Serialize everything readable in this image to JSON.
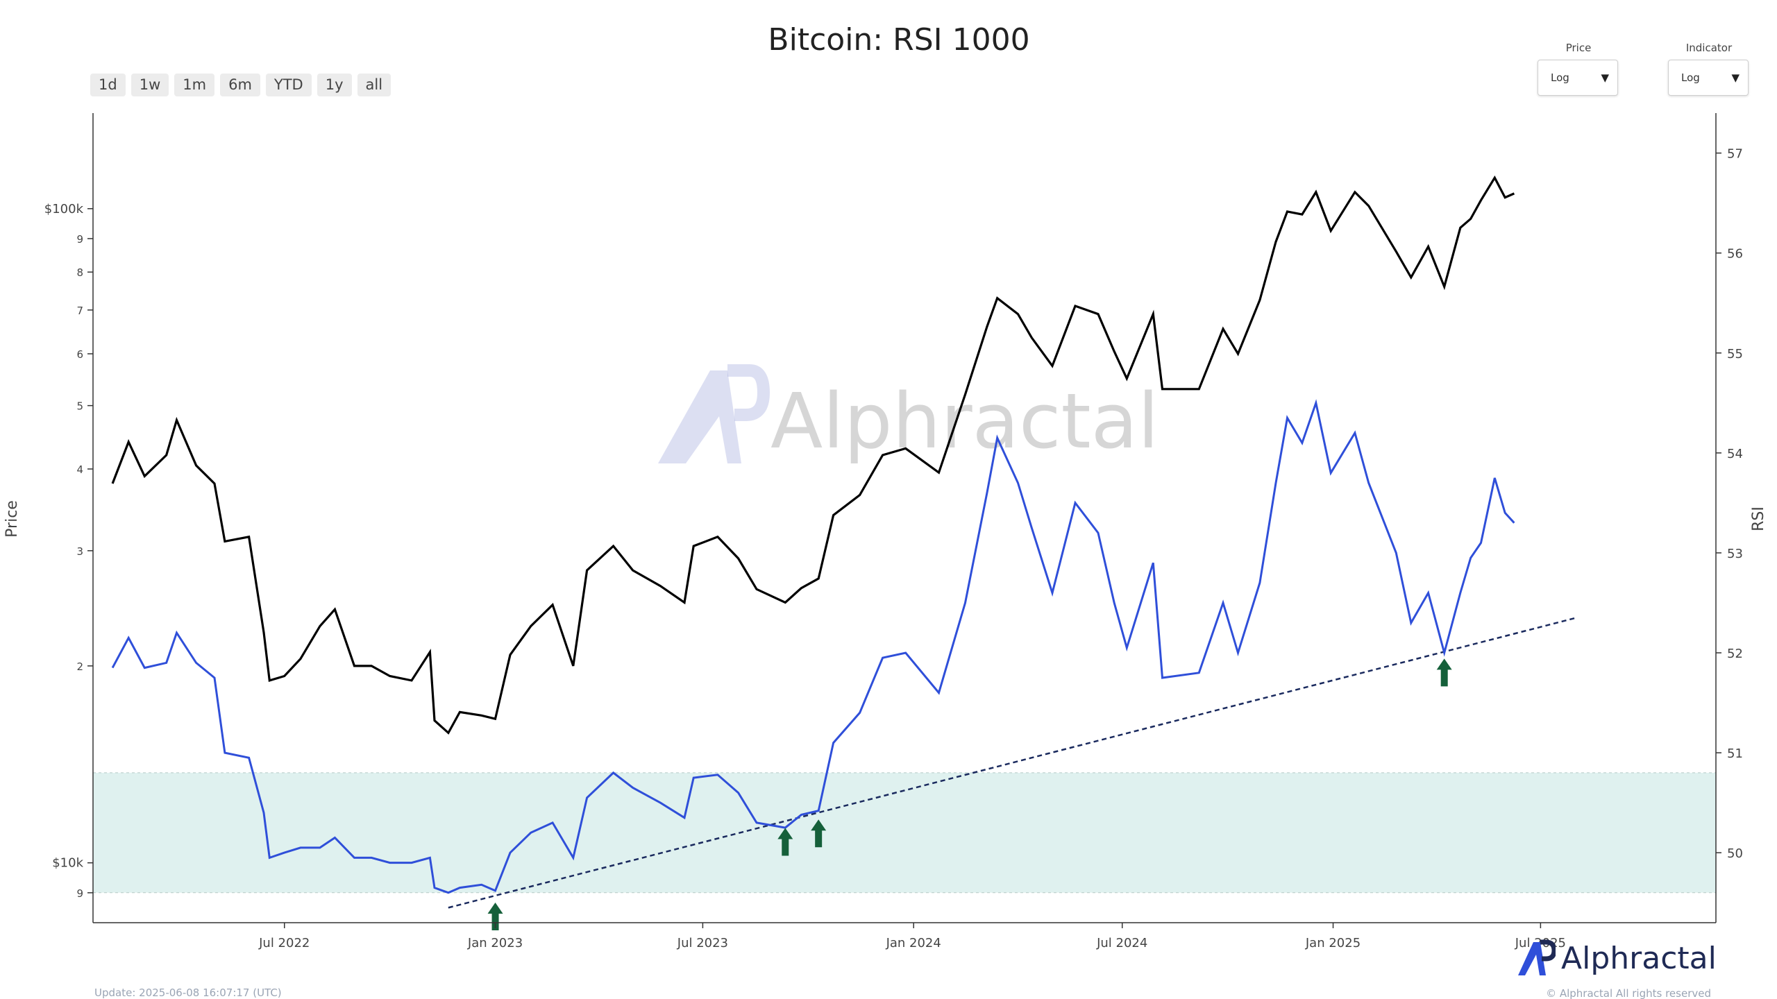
{
  "title": "Bitcoin: RSI 1000",
  "range_buttons": [
    "1d",
    "1w",
    "1m",
    "6m",
    "YTD",
    "1y",
    "all"
  ],
  "price_select": {
    "label": "Price",
    "value": "Log"
  },
  "indicator_select": {
    "label": "Indicator",
    "value": "Log"
  },
  "watermark": "Alphractal",
  "footer": {
    "update": "Update: 2025-06-08 16:07:17 (UTC)",
    "brand": "Alphractal",
    "copyright": "© Alphractal All rights reserved"
  },
  "colors": {
    "price": "#000000",
    "rsi": "#2f4fd9",
    "band": "#dff1ef",
    "trendline": "#1a2a5e",
    "arrow": "#15603a"
  },
  "chart_data": {
    "type": "line",
    "title": "Bitcoin: RSI 1000",
    "x_tick_labels": [
      "Jul 2022",
      "Jan 2023",
      "Jul 2023",
      "Jan 2024",
      "Jul 2024",
      "Jan 2025",
      "Jul 2025"
    ],
    "y_left": {
      "label": "Price",
      "scale": "log",
      "tick_labels": [
        "9",
        "$10k",
        "2",
        "3",
        "4",
        "5",
        "6",
        "7",
        "8",
        "9",
        "$100k"
      ]
    },
    "y_right": {
      "label": "RSI",
      "tick_labels": [
        "50",
        "51",
        "52",
        "53",
        "54",
        "55",
        "56",
        "57"
      ],
      "range": [
        49.3,
        57.4
      ]
    },
    "highlight_band": {
      "rsi_from": 49.6,
      "rsi_to": 50.8
    },
    "series": [
      {
        "axis": "left",
        "points": [
          [
            "2022-02-01",
            38000
          ],
          [
            "2022-02-15",
            44000
          ],
          [
            "2022-03-01",
            39000
          ],
          [
            "2022-03-20",
            42000
          ],
          [
            "2022-03-29",
            47500
          ],
          [
            "2022-04-15",
            40500
          ],
          [
            "2022-05-01",
            38000
          ],
          [
            "2022-05-10",
            31000
          ],
          [
            "2022-05-31",
            31500
          ],
          [
            "2022-06-13",
            22500
          ],
          [
            "2022-06-18",
            19000
          ],
          [
            "2022-07-01",
            19300
          ],
          [
            "2022-07-15",
            20500
          ],
          [
            "2022-08-01",
            23000
          ],
          [
            "2022-08-14",
            24400
          ],
          [
            "2022-08-31",
            20000
          ],
          [
            "2022-09-15",
            20000
          ],
          [
            "2022-10-01",
            19300
          ],
          [
            "2022-10-20",
            19000
          ],
          [
            "2022-11-05",
            21000
          ],
          [
            "2022-11-09",
            16500
          ],
          [
            "2022-11-21",
            15800
          ],
          [
            "2022-12-01",
            17000
          ],
          [
            "2022-12-20",
            16800
          ],
          [
            "2023-01-01",
            16600
          ],
          [
            "2023-01-14",
            20800
          ],
          [
            "2023-02-01",
            23000
          ],
          [
            "2023-02-20",
            24800
          ],
          [
            "2023-03-10",
            20000
          ],
          [
            "2023-03-22",
            28000
          ],
          [
            "2023-04-14",
            30500
          ],
          [
            "2023-05-01",
            28000
          ],
          [
            "2023-05-25",
            26500
          ],
          [
            "2023-06-15",
            25000
          ],
          [
            "2023-06-23",
            30500
          ],
          [
            "2023-07-14",
            31500
          ],
          [
            "2023-08-01",
            29200
          ],
          [
            "2023-08-17",
            26200
          ],
          [
            "2023-09-11",
            25000
          ],
          [
            "2023-09-25",
            26300
          ],
          [
            "2023-10-10",
            27200
          ],
          [
            "2023-10-23",
            34000
          ],
          [
            "2023-11-15",
            36500
          ],
          [
            "2023-12-05",
            42000
          ],
          [
            "2023-12-25",
            43000
          ],
          [
            "2024-01-23",
            39500
          ],
          [
            "2024-02-15",
            52000
          ],
          [
            "2024-03-05",
            66000
          ],
          [
            "2024-03-14",
            73000
          ],
          [
            "2024-04-01",
            69000
          ],
          [
            "2024-04-13",
            63500
          ],
          [
            "2024-05-01",
            57500
          ],
          [
            "2024-05-21",
            71000
          ],
          [
            "2024-06-10",
            69000
          ],
          [
            "2024-06-24",
            60500
          ],
          [
            "2024-07-05",
            55000
          ],
          [
            "2024-07-28",
            69000
          ],
          [
            "2024-08-05",
            53000
          ],
          [
            "2024-09-06",
            53000
          ],
          [
            "2024-09-27",
            65500
          ],
          [
            "2024-10-10",
            60000
          ],
          [
            "2024-10-29",
            72500
          ],
          [
            "2024-11-12",
            89000
          ],
          [
            "2024-11-22",
            99000
          ],
          [
            "2024-12-05",
            98000
          ],
          [
            "2024-12-17",
            106000
          ],
          [
            "2024-12-30",
            92500
          ],
          [
            "2025-01-20",
            106000
          ],
          [
            "2025-02-01",
            101000
          ],
          [
            "2025-02-25",
            86000
          ],
          [
            "2025-03-10",
            78500
          ],
          [
            "2025-03-25",
            87500
          ],
          [
            "2025-04-08",
            76000
          ],
          [
            "2025-04-22",
            93500
          ],
          [
            "2025-05-01",
            96500
          ],
          [
            "2025-05-10",
            103000
          ],
          [
            "2025-05-22",
            111500
          ],
          [
            "2025-05-31",
            104000
          ],
          [
            "2025-06-08",
            105500
          ]
        ]
      },
      {
        "axis": "right",
        "points": [
          [
            "2022-02-01",
            51.85
          ],
          [
            "2022-02-15",
            52.15
          ],
          [
            "2022-03-01",
            51.85
          ],
          [
            "2022-03-20",
            51.9
          ],
          [
            "2022-03-29",
            52.2
          ],
          [
            "2022-04-15",
            51.9
          ],
          [
            "2022-05-01",
            51.75
          ],
          [
            "2022-05-10",
            51.0
          ],
          [
            "2022-05-31",
            50.95
          ],
          [
            "2022-06-13",
            50.4
          ],
          [
            "2022-06-18",
            49.95
          ],
          [
            "2022-07-01",
            50.0
          ],
          [
            "2022-07-15",
            50.05
          ],
          [
            "2022-08-01",
            50.05
          ],
          [
            "2022-08-14",
            50.15
          ],
          [
            "2022-08-31",
            49.95
          ],
          [
            "2022-09-15",
            49.95
          ],
          [
            "2022-10-01",
            49.9
          ],
          [
            "2022-10-20",
            49.9
          ],
          [
            "2022-11-05",
            49.95
          ],
          [
            "2022-11-09",
            49.65
          ],
          [
            "2022-11-21",
            49.6
          ],
          [
            "2022-12-01",
            49.65
          ],
          [
            "2022-12-20",
            49.68
          ],
          [
            "2023-01-01",
            49.62
          ],
          [
            "2023-01-14",
            50.0
          ],
          [
            "2023-02-01",
            50.2
          ],
          [
            "2023-02-20",
            50.3
          ],
          [
            "2023-03-10",
            49.95
          ],
          [
            "2023-03-22",
            50.55
          ],
          [
            "2023-04-14",
            50.8
          ],
          [
            "2023-05-01",
            50.65
          ],
          [
            "2023-05-25",
            50.5
          ],
          [
            "2023-06-15",
            50.35
          ],
          [
            "2023-06-23",
            50.75
          ],
          [
            "2023-07-14",
            50.78
          ],
          [
            "2023-08-01",
            50.6
          ],
          [
            "2023-08-17",
            50.3
          ],
          [
            "2023-09-11",
            50.25
          ],
          [
            "2023-09-25",
            50.38
          ],
          [
            "2023-10-10",
            50.42
          ],
          [
            "2023-10-23",
            51.1
          ],
          [
            "2023-11-15",
            51.4
          ],
          [
            "2023-12-05",
            51.95
          ],
          [
            "2023-12-25",
            52.0
          ],
          [
            "2024-01-23",
            51.6
          ],
          [
            "2024-02-15",
            52.5
          ],
          [
            "2024-03-05",
            53.6
          ],
          [
            "2024-03-14",
            54.15
          ],
          [
            "2024-04-01",
            53.7
          ],
          [
            "2024-04-13",
            53.25
          ],
          [
            "2024-05-01",
            52.6
          ],
          [
            "2024-05-21",
            53.5
          ],
          [
            "2024-06-10",
            53.2
          ],
          [
            "2024-06-24",
            52.5
          ],
          [
            "2024-07-05",
            52.05
          ],
          [
            "2024-07-28",
            52.9
          ],
          [
            "2024-08-05",
            51.75
          ],
          [
            "2024-09-06",
            51.8
          ],
          [
            "2024-09-27",
            52.5
          ],
          [
            "2024-10-10",
            52.0
          ],
          [
            "2024-10-29",
            52.7
          ],
          [
            "2024-11-12",
            53.7
          ],
          [
            "2024-11-22",
            54.35
          ],
          [
            "2024-12-05",
            54.1
          ],
          [
            "2024-12-17",
            54.5
          ],
          [
            "2024-12-30",
            53.8
          ],
          [
            "2025-01-20",
            54.2
          ],
          [
            "2025-02-01",
            53.7
          ],
          [
            "2025-02-25",
            53.0
          ],
          [
            "2025-03-10",
            52.3
          ],
          [
            "2025-03-25",
            52.6
          ],
          [
            "2025-04-08",
            52.0
          ],
          [
            "2025-04-22",
            52.6
          ],
          [
            "2025-05-01",
            52.95
          ],
          [
            "2025-05-10",
            53.1
          ],
          [
            "2025-05-22",
            53.75
          ],
          [
            "2025-05-31",
            53.4
          ],
          [
            "2025-06-08",
            53.3
          ]
        ]
      }
    ],
    "trendline": {
      "axis": "right",
      "from": [
        "2022-11-21",
        49.45
      ],
      "to": [
        "2025-08-01",
        52.35
      ]
    },
    "arrows_at": [
      "2023-01-01",
      "2023-09-11",
      "2023-10-10",
      "2025-04-08"
    ]
  }
}
